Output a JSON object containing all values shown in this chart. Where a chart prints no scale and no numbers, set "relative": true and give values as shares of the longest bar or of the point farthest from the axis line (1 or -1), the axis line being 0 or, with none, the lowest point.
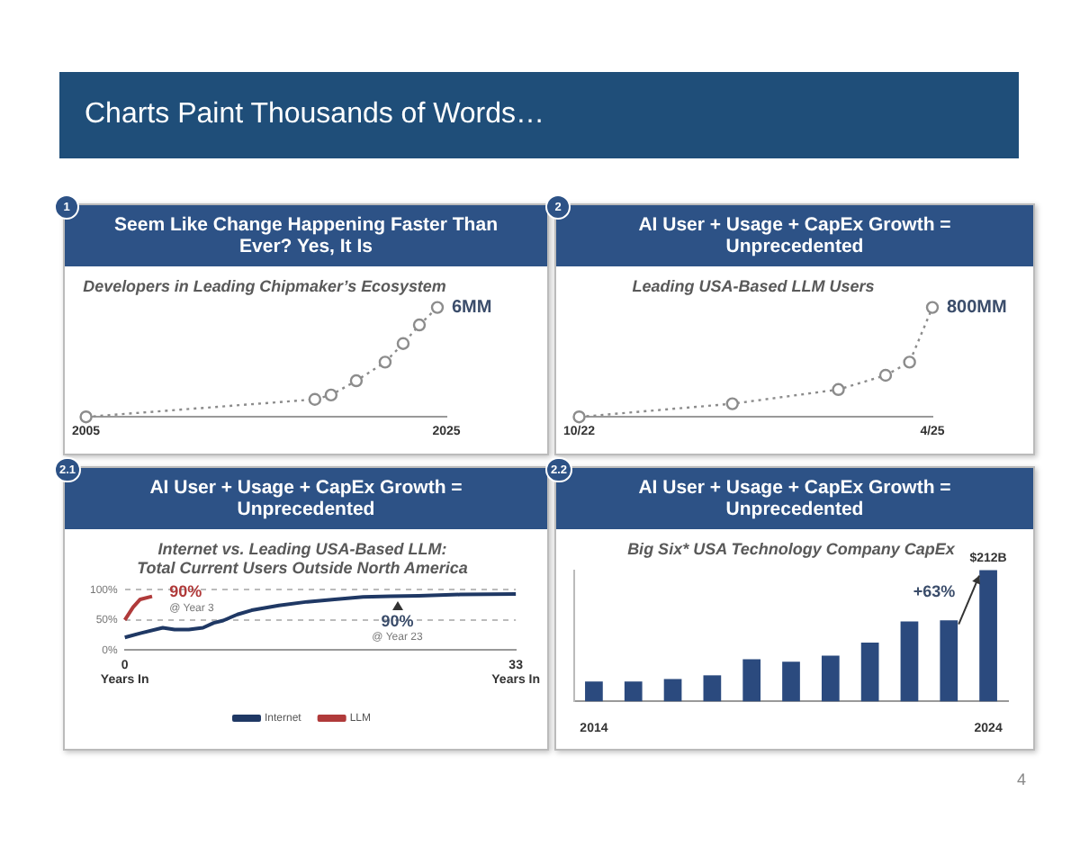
{
  "chart_data": [
    {
      "type": "line",
      "title": "Seem Like Change Happening Faster Than Ever? Yes, It Is",
      "subtitle": "Developers in Leading Chipmaker’s Ecosystem",
      "relative": true,
      "x": [
        2005,
        2017.7,
        2018.6,
        2020,
        2021.6,
        2022.6,
        2023.5,
        2024.5
      ],
      "values": [
        0,
        0.16,
        0.2,
        0.33,
        0.5,
        0.67,
        0.84,
        1
      ],
      "color": "#8c8c8c",
      "xlim": [
        2005,
        2025
      ],
      "xticks": [
        2005,
        2025
      ],
      "marker": "circle",
      "line_style": "dotted",
      "annotations": [
        "1",
        "Charts Paint Thousands of Words…",
        {
          "text": "6MM",
          "x": 2024.5,
          "y": 1
        }
      ]
    },
    {
      "type": "line",
      "title": "AI User + Usage + CapEx Growth = Unprecedented",
      "subtitle": "Leading USA-Based LLM Users",
      "relative": true,
      "x": [
        "2022-10",
        "2023-11",
        "2024-08",
        "2024-12",
        "2025-02",
        "2025-04"
      ],
      "values": [
        0,
        0.12,
        0.25,
        0.38,
        0.5,
        1
      ],
      "color": "#8c8c8c",
      "xlim": [
        "2022-10",
        "2025-04"
      ],
      "xticks": [
        {
          "value": "2022-10",
          "label": "10/22"
        },
        {
          "value": "2025-04",
          "label": "4/25"
        }
      ],
      "marker": "circle",
      "line_style": "dotted",
      "annotations": [
        "2",
        {
          "text": "800MM",
          "x": "2025-04",
          "y": 1
        }
      ]
    },
    {
      "type": "line",
      "title": "AI User + Usage + CapEx Growth = Unprecedented",
      "subtitle": "Internet vs. Leading USA-Based LLM:\nTotal Current Users Outside North America",
      "series": [
        {
          "name": "Internet",
          "color": "#1f3864",
          "x": [
            0,
            1.3,
            3.2,
            4.2,
            5.4,
            6.6,
            7.5,
            8.3,
            9.5,
            10.7,
            13,
            15.4,
            17.7,
            20.1,
            22.4,
            24.8,
            28.3,
            33
          ],
          "values": [
            21,
            28,
            37,
            34,
            34,
            37,
            45,
            49,
            59,
            66,
            74,
            80,
            84,
            88,
            89,
            90,
            92,
            93
          ]
        },
        {
          "name": "LLM",
          "color": "#b03a3a",
          "x": [
            0,
            0.7,
            1.3,
            2.3
          ],
          "values": [
            50,
            71,
            84,
            89
          ]
        }
      ],
      "xlim": [
        0,
        33
      ],
      "xticks": [
        {
          "value": 0,
          "label": "0\nYears In"
        },
        {
          "value": 33,
          "label": "33\nYears In"
        }
      ],
      "ylim": [
        0,
        100
      ],
      "yticks": [
        {
          "value": 0,
          "label": "0%"
        },
        {
          "value": 50,
          "label": "50%"
        },
        {
          "value": 100,
          "label": "100%"
        }
      ],
      "grid": "y",
      "legend": "bottom",
      "marker": "none",
      "line_style": "solid",
      "annotations": [
        "2.1",
        {
          "text": "90%\n@ Year 23",
          "x": 23,
          "y": 90
        },
        {
          "text": "90%\n@ Year 3",
          "x": 3,
          "y": 90
        }
      ]
    },
    {
      "type": "bar",
      "title": "AI User + Usage + CapEx Growth = Unprecedented",
      "subtitle": "Big Six* USA Technology Company CapEx",
      "categories": [
        "2014",
        null,
        null,
        null,
        null,
        null,
        null,
        null,
        null,
        null,
        "2024"
      ],
      "values": [
        32,
        32,
        36,
        42,
        68,
        64,
        74,
        95,
        129,
        131,
        212
      ],
      "value_labels": [
        null,
        null,
        null,
        null,
        null,
        null,
        null,
        null,
        null,
        null,
        "$212B"
      ],
      "color": "#2b4a7e",
      "annotations": [
        "2.2",
        {
          "text": "+63%",
          "x": "2024",
          "y": 212
        },
        "4"
      ]
    }
  ]
}
